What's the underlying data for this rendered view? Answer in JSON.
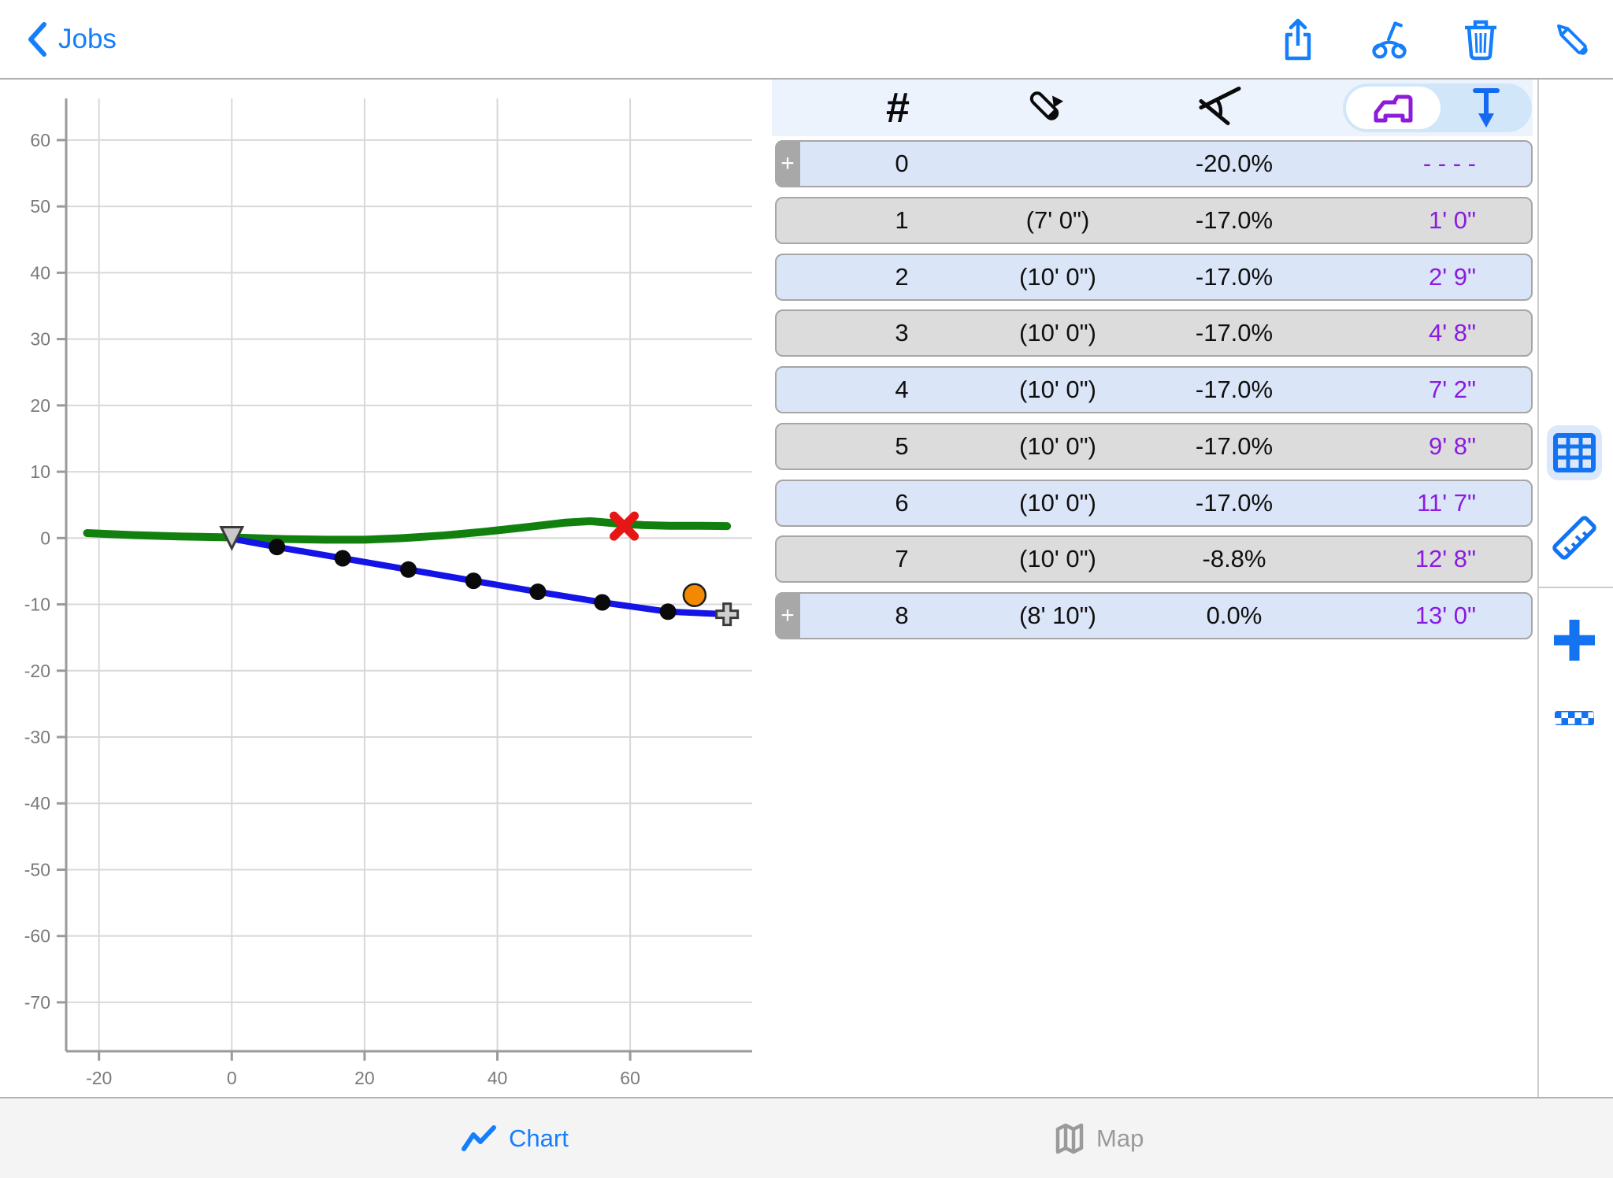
{
  "nav": {
    "back_label": "Jobs",
    "icons": [
      "share-icon",
      "pipe-laser-icon",
      "trash-icon",
      "pencil-icon"
    ]
  },
  "table": {
    "header_icons": [
      "hash-icon",
      "pipe-length-icon",
      "slope-angle-icon",
      "laser-device-icon",
      "depth-arrow-icon"
    ],
    "add_tab_label": "+",
    "rows": [
      {
        "num": "0",
        "length": "",
        "slope": "-20.0%",
        "measure": "- - - -",
        "has_add_tab": true
      },
      {
        "num": "1",
        "length": "(7' 0\")",
        "slope": "-17.0%",
        "measure": "1' 0\""
      },
      {
        "num": "2",
        "length": "(10' 0\")",
        "slope": "-17.0%",
        "measure": "2' 9\""
      },
      {
        "num": "3",
        "length": "(10' 0\")",
        "slope": "-17.0%",
        "measure": "4' 8\""
      },
      {
        "num": "4",
        "length": "(10' 0\")",
        "slope": "-17.0%",
        "measure": "7' 2\""
      },
      {
        "num": "5",
        "length": "(10' 0\")",
        "slope": "-17.0%",
        "measure": "9' 8\""
      },
      {
        "num": "6",
        "length": "(10' 0\")",
        "slope": "-17.0%",
        "measure": "11' 7\""
      },
      {
        "num": "7",
        "length": "(10' 0\")",
        "slope": "-8.8%",
        "measure": "12' 8\""
      },
      {
        "num": "8",
        "length": "(8' 10\")",
        "slope": "0.0%",
        "measure": "13' 0\"",
        "has_add_tab": true
      }
    ]
  },
  "tabbar": {
    "chart_label": "Chart",
    "map_label": "Map"
  },
  "chart_data": {
    "type": "line",
    "x_ticks": [
      -20,
      0,
      20,
      40,
      60
    ],
    "y_ticks": [
      60,
      50,
      40,
      30,
      20,
      10,
      0,
      -10,
      -20,
      -30,
      -40,
      -50,
      -60,
      -70
    ],
    "xlim": [
      -25,
      78
    ],
    "ylim": [
      -77,
      66
    ],
    "grid": true,
    "series": [
      {
        "name": "existing-ground",
        "color": "#12800F",
        "width": 10,
        "points": [
          [
            -21.8,
            0.75
          ],
          [
            -15,
            0.45
          ],
          [
            -8,
            0.25
          ],
          [
            0,
            0.1
          ],
          [
            8,
            -0.15
          ],
          [
            14,
            -0.25
          ],
          [
            20,
            -0.25
          ],
          [
            26,
            0
          ],
          [
            32,
            0.4
          ],
          [
            38,
            0.95
          ],
          [
            44,
            1.6
          ],
          [
            50,
            2.3
          ],
          [
            54,
            2.55
          ],
          [
            58,
            2.2
          ],
          [
            62,
            1.95
          ],
          [
            66,
            1.85
          ],
          [
            70,
            1.85
          ],
          [
            74.6,
            1.8
          ]
        ]
      },
      {
        "name": "pipe-design",
        "color": "#1414E6",
        "width": 8,
        "points": [
          [
            0,
            -0.1
          ],
          [
            6.8,
            -1.35
          ],
          [
            16.7,
            -3.05
          ],
          [
            26.6,
            -4.75
          ],
          [
            36.4,
            -6.45
          ],
          [
            46.1,
            -8.1
          ],
          [
            55.8,
            -9.7
          ],
          [
            65.7,
            -11.1
          ],
          [
            74.6,
            -11.5
          ]
        ]
      }
    ],
    "station_dot_color": "#0a0a0a",
    "markers": {
      "triangle_marker": {
        "x": 0,
        "y": 0.1,
        "fill": "#c9c9c9",
        "stroke": "#3a3a3a"
      },
      "x_marker": {
        "x": 59.1,
        "y": 1.8,
        "color": "#E81515"
      },
      "circle_marker": {
        "x": 69.7,
        "y": -8.6,
        "fill": "#F28900",
        "stroke": "#1c1c1c"
      },
      "plus_marker": {
        "x": 74.6,
        "y": -11.5,
        "fill": "#cfcfcf",
        "stroke": "#3a3a3a"
      }
    }
  },
  "colors": {
    "accent_blue": "#147EFB",
    "purple": "#8E1BD9",
    "purple_text": "#8A1BE0",
    "row_blue": "#dbe5f8",
    "row_gray": "#dcdcdc",
    "ground_green": "#12800F",
    "pipe_blue": "#1414E6",
    "marker_red": "#E81515",
    "marker_orange": "#F28900"
  }
}
